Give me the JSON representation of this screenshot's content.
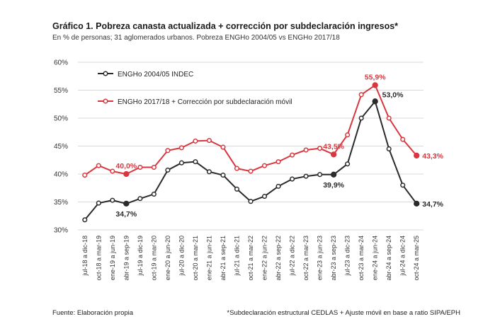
{
  "title": "Gráfico 1. Pobreza canasta actualizada + corrección por subdeclaración ingresos*",
  "subtitle": "En % de personas; 31 aglomerados urbanos. Pobreza ENGHo 2004/05 vs ENGHo 2017/18",
  "source": "Fuente: Elaboración propia",
  "note": "*Subdeclaración estructural CEDLAS + Ajuste móvil en base a ratio SIPA/EPH",
  "colors": {
    "series1": "#2b2b2b",
    "series2": "#d9363e",
    "grid": "#d9d9d9"
  },
  "chart_data": {
    "type": "line",
    "ylim": [
      30,
      60
    ],
    "yticks": [
      "30%",
      "35%",
      "40%",
      "45%",
      "50%",
      "55%",
      "60%"
    ],
    "categories": [
      "jul-18 a dic-18",
      "oct-18 a mar-19",
      "ene-19 a jun-19",
      "abr-19 a sep-19",
      "jul-19 a dic-19",
      "oct-19 a mar-20",
      "ene-20 a jun-20",
      "jul-20 a dic-20",
      "oct-20 a mar-21",
      "ene-21 a jun-21",
      "abr-21 a sep-21",
      "jul-21 a dic-21",
      "oct-21 a mar-22",
      "ene-22 a jun-22",
      "abr-22 a sep-22",
      "jul-22 a dic-22",
      "oct-22 a mar-23",
      "ene-23 a jun-23",
      "abr-23 a sep-23",
      "jul-23 a dic-23",
      "oct-23 a mar-24",
      "ene-24 a jun-24",
      "abr-24 a sep-24",
      "jul-24 a dic-24",
      "oct-24 a mar-25"
    ],
    "series": [
      {
        "name": "ENGHo 2004/05 INDEC",
        "values": [
          31.8,
          34.8,
          35.3,
          34.7,
          35.6,
          36.4,
          40.7,
          42.0,
          42.2,
          40.4,
          39.8,
          37.3,
          35.1,
          36.0,
          37.8,
          39.1,
          39.6,
          39.9,
          39.9,
          41.8,
          50.0,
          53.0,
          44.5,
          38.0,
          34.7
        ]
      },
      {
        "name": "ENGHo 2017/18 + Corrección por subdeclaración móvil",
        "values": [
          39.8,
          41.5,
          40.5,
          40.0,
          41.2,
          41.2,
          44.2,
          44.7,
          45.9,
          46.0,
          44.8,
          41.0,
          40.5,
          41.5,
          42.2,
          43.4,
          44.3,
          44.6,
          43.5,
          47.0,
          54.2,
          55.9,
          50.0,
          46.2,
          43.3
        ]
      }
    ],
    "annotations": [
      {
        "series": 0,
        "index": 3,
        "text": "34,7%"
      },
      {
        "series": 0,
        "index": 18,
        "text": "39,9%"
      },
      {
        "series": 0,
        "index": 21,
        "text": "53,0%"
      },
      {
        "series": 0,
        "index": 24,
        "text": "34,7%"
      },
      {
        "series": 1,
        "index": 3,
        "text": "40,0%"
      },
      {
        "series": 1,
        "index": 18,
        "text": "43,5%"
      },
      {
        "series": 1,
        "index": 21,
        "text": "55,9%"
      },
      {
        "series": 1,
        "index": 24,
        "text": "43,3%"
      }
    ],
    "legend": "top-left",
    "grid": true
  }
}
